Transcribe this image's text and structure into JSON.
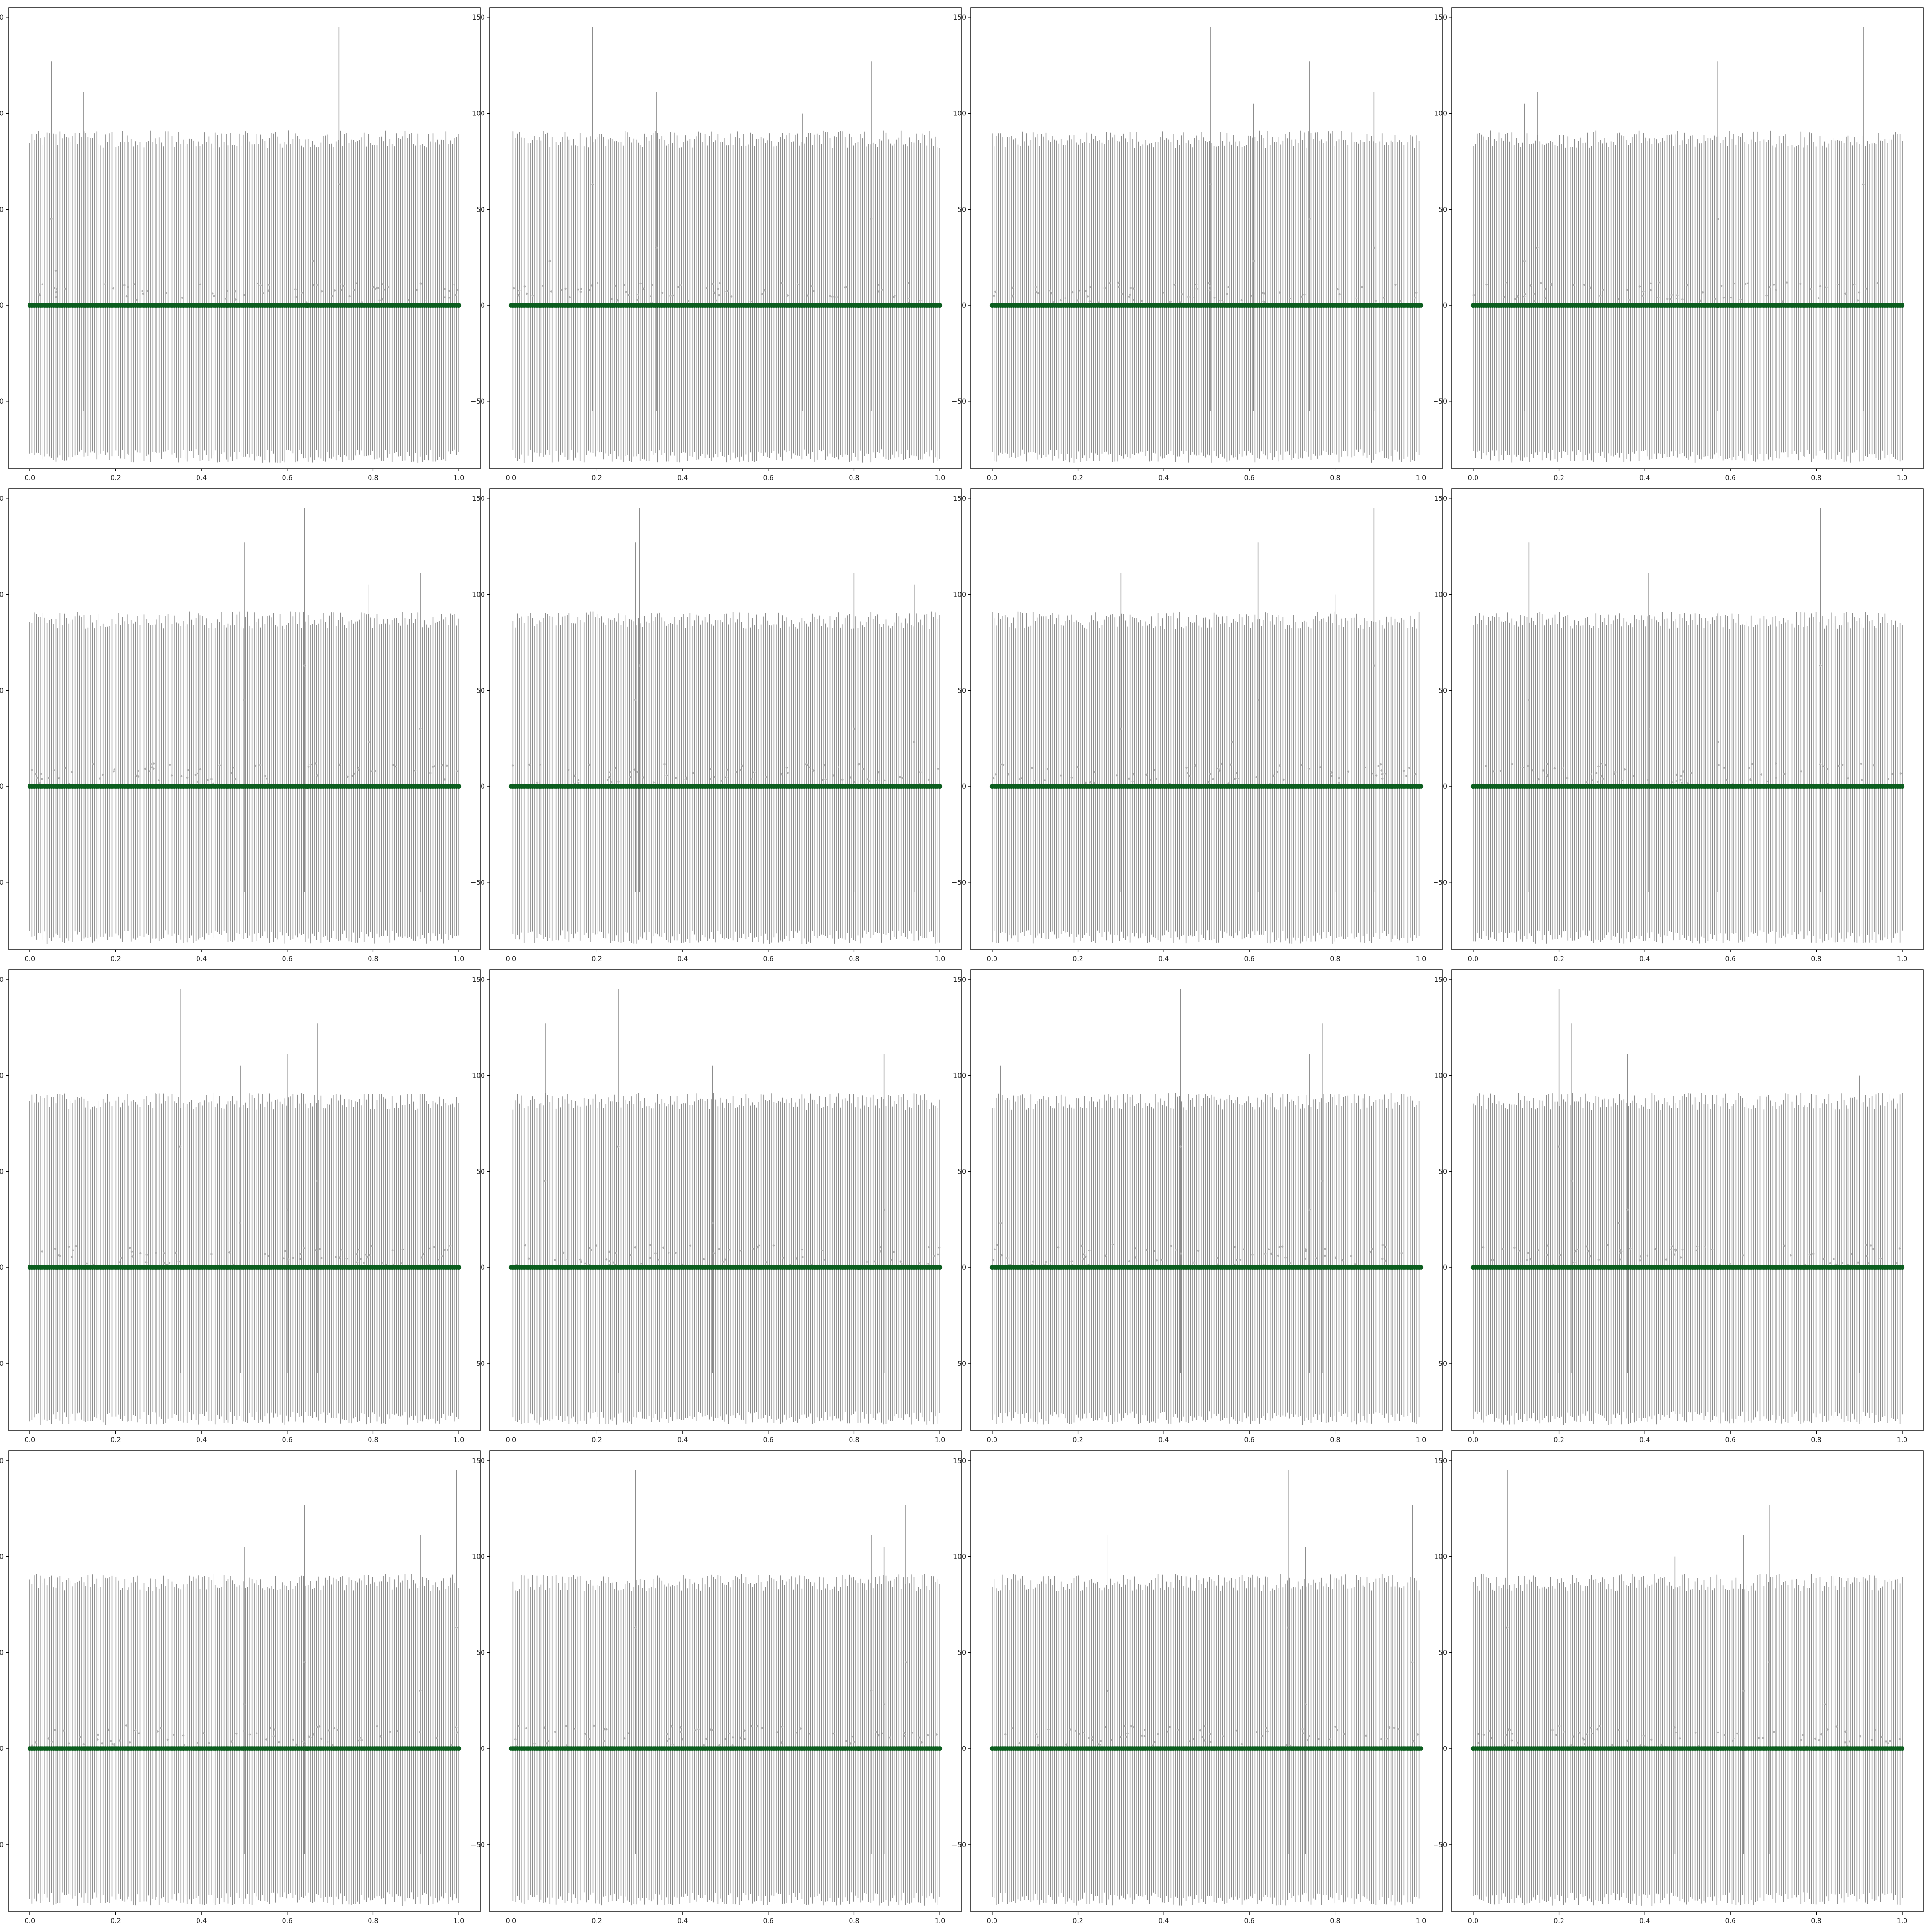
{
  "figure": {
    "layout": "4x4 grid of error-bar panels",
    "colors": {
      "points": "#0b5d1e",
      "error_bars": "#8c8c8c",
      "faint_points": "#b0b0b0",
      "axes": "#000000"
    }
  },
  "chart_data": [
    {
      "type": "scatter",
      "subtype": "errorbar",
      "panel": 1,
      "xlim": [
        0,
        1
      ],
      "ylim": [
        -85,
        155
      ],
      "x_ticks": [
        "0.0",
        "0.2",
        "0.4",
        "0.6",
        "0.8",
        "1.0"
      ],
      "y_ticks": [
        "−50",
        "0",
        "50",
        "100",
        "150"
      ],
      "n_points": 200,
      "y_value": 0,
      "typical_error": [
        -80,
        85
      ],
      "spikes": [
        {
          "x": 0.05,
          "y": 127
        },
        {
          "x": 0.125,
          "y": 111
        },
        {
          "x": 0.66,
          "y": 105
        },
        {
          "x": 0.72,
          "y": 145
        }
      ],
      "scatter_examples": [
        {
          "x": 0.05,
          "y": 45
        },
        {
          "x": 0.06,
          "y": 18
        },
        {
          "x": 0.72,
          "y": 63
        },
        {
          "x": 0.66,
          "y": 23
        }
      ],
      "grid": false,
      "legend": "none"
    },
    {
      "type": "scatter",
      "subtype": "errorbar",
      "panel": 2,
      "xlim": [
        0,
        1
      ],
      "ylim": [
        -85,
        155
      ],
      "x_ticks": [
        "0.0",
        "0.2",
        "0.4",
        "0.6",
        "0.8",
        "1.0"
      ],
      "y_ticks": [
        "−50",
        "0",
        "50",
        "100",
        "150"
      ],
      "n_points": 200,
      "y_value": 0,
      "typical_error": [
        -80,
        85
      ],
      "spikes": [
        {
          "x": 0.19,
          "y": 145
        },
        {
          "x": 0.34,
          "y": 111
        },
        {
          "x": 0.84,
          "y": 127
        },
        {
          "x": 0.68,
          "y": 100
        }
      ],
      "scatter_examples": [
        {
          "x": 0.19,
          "y": 63
        },
        {
          "x": 0.34,
          "y": 30
        },
        {
          "x": 0.84,
          "y": 45
        },
        {
          "x": 0.09,
          "y": 23
        }
      ],
      "grid": false,
      "legend": "none"
    },
    {
      "type": "scatter",
      "subtype": "errorbar",
      "panel": 3,
      "xlim": [
        0,
        1
      ],
      "ylim": [
        -85,
        155
      ],
      "x_ticks": [
        "0.0",
        "0.2",
        "0.4",
        "0.6",
        "0.8",
        "1.0"
      ],
      "y_ticks": [
        "−50",
        "0",
        "50",
        "100",
        "150"
      ],
      "n_points": 200,
      "y_value": 0,
      "typical_error": [
        -80,
        85
      ],
      "spikes": [
        {
          "x": 0.51,
          "y": 145
        },
        {
          "x": 0.74,
          "y": 127
        },
        {
          "x": 0.89,
          "y": 111
        },
        {
          "x": 0.61,
          "y": 105
        }
      ],
      "scatter_examples": [
        {
          "x": 0.51,
          "y": 63
        },
        {
          "x": 0.74,
          "y": 45
        },
        {
          "x": 0.89,
          "y": 30
        },
        {
          "x": 0.61,
          "y": 23
        }
      ],
      "grid": false,
      "legend": "none"
    },
    {
      "type": "scatter",
      "subtype": "errorbar",
      "panel": 4,
      "xlim": [
        0,
        1
      ],
      "ylim": [
        -85,
        155
      ],
      "x_ticks": [
        "0.0",
        "0.2",
        "0.4",
        "0.6",
        "0.8",
        "1.0"
      ],
      "y_ticks": [
        "−50",
        "0",
        "50",
        "100",
        "150"
      ],
      "n_points": 200,
      "y_value": 0,
      "typical_error": [
        -80,
        85
      ],
      "spikes": [
        {
          "x": 0.91,
          "y": 145
        },
        {
          "x": 0.57,
          "y": 127
        },
        {
          "x": 0.15,
          "y": 111
        },
        {
          "x": 0.12,
          "y": 105
        }
      ],
      "scatter_examples": [
        {
          "x": 0.91,
          "y": 63
        },
        {
          "x": 0.57,
          "y": 45
        },
        {
          "x": 0.15,
          "y": 30
        },
        {
          "x": 0.12,
          "y": 23
        }
      ],
      "grid": false,
      "legend": "none"
    },
    {
      "type": "scatter",
      "subtype": "errorbar",
      "panel": 5,
      "xlim": [
        0,
        1
      ],
      "ylim": [
        -85,
        155
      ],
      "x_ticks": [
        "0.0",
        "0.2",
        "0.4",
        "0.6",
        "0.8",
        "1.0"
      ],
      "y_ticks": [
        "−50",
        "0",
        "50",
        "100",
        "150"
      ],
      "n_points": 200,
      "y_value": 0,
      "typical_error": [
        -80,
        85
      ],
      "spikes": [
        {
          "x": 0.64,
          "y": 145
        },
        {
          "x": 0.5,
          "y": 127
        },
        {
          "x": 0.91,
          "y": 111
        },
        {
          "x": 0.79,
          "y": 105
        }
      ],
      "scatter_examples": [
        {
          "x": 0.64,
          "y": 63
        },
        {
          "x": 0.5,
          "y": 45
        },
        {
          "x": 0.91,
          "y": 30
        },
        {
          "x": 0.79,
          "y": 23
        }
      ],
      "grid": false,
      "legend": "none"
    },
    {
      "type": "scatter",
      "subtype": "errorbar",
      "panel": 6,
      "xlim": [
        0,
        1
      ],
      "ylim": [
        -85,
        155
      ],
      "x_ticks": [
        "0.0",
        "0.2",
        "0.4",
        "0.6",
        "0.8",
        "1.0"
      ],
      "y_ticks": [
        "−50",
        "0",
        "50",
        "100",
        "150"
      ],
      "n_points": 200,
      "y_value": 0,
      "typical_error": [
        -80,
        85
      ],
      "spikes": [
        {
          "x": 0.3,
          "y": 145
        },
        {
          "x": 0.29,
          "y": 127
        },
        {
          "x": 0.8,
          "y": 111
        },
        {
          "x": 0.94,
          "y": 105
        }
      ],
      "scatter_examples": [
        {
          "x": 0.3,
          "y": 63
        },
        {
          "x": 0.29,
          "y": 45
        },
        {
          "x": 0.8,
          "y": 30
        },
        {
          "x": 0.94,
          "y": 23
        }
      ],
      "grid": false,
      "legend": "none"
    },
    {
      "type": "scatter",
      "subtype": "errorbar",
      "panel": 7,
      "xlim": [
        0,
        1
      ],
      "ylim": [
        -85,
        155
      ],
      "x_ticks": [
        "0.0",
        "0.2",
        "0.4",
        "0.6",
        "0.8",
        "1.0"
      ],
      "y_ticks": [
        "−50",
        "0",
        "50",
        "100",
        "150"
      ],
      "n_points": 200,
      "y_value": 0,
      "typical_error": [
        -80,
        85
      ],
      "spikes": [
        {
          "x": 0.89,
          "y": 145
        },
        {
          "x": 0.62,
          "y": 127
        },
        {
          "x": 0.3,
          "y": 111
        },
        {
          "x": 0.8,
          "y": 100
        }
      ],
      "scatter_examples": [
        {
          "x": 0.89,
          "y": 63
        },
        {
          "x": 0.62,
          "y": 45
        },
        {
          "x": 0.3,
          "y": 30
        },
        {
          "x": 0.56,
          "y": 23
        }
      ],
      "grid": false,
      "legend": "none"
    },
    {
      "type": "scatter",
      "subtype": "errorbar",
      "panel": 8,
      "xlim": [
        0,
        1
      ],
      "ylim": [
        -85,
        155
      ],
      "x_ticks": [
        "0.0",
        "0.2",
        "0.4",
        "0.6",
        "0.8",
        "1.0"
      ],
      "y_ticks": [
        "−50",
        "0",
        "50",
        "100",
        "150"
      ],
      "n_points": 200,
      "y_value": 0,
      "typical_error": [
        -80,
        85
      ],
      "spikes": [
        {
          "x": 0.81,
          "y": 145
        },
        {
          "x": 0.13,
          "y": 127
        },
        {
          "x": 0.41,
          "y": 111
        },
        {
          "x": 0.57,
          "y": 90
        }
      ],
      "scatter_examples": [
        {
          "x": 0.81,
          "y": 63
        },
        {
          "x": 0.13,
          "y": 45
        },
        {
          "x": 0.41,
          "y": 30
        },
        {
          "x": 0.57,
          "y": 23
        }
      ],
      "grid": false,
      "legend": "none"
    },
    {
      "type": "scatter",
      "subtype": "errorbar",
      "panel": 9,
      "xlim": [
        0,
        1
      ],
      "ylim": [
        -85,
        155
      ],
      "x_ticks": [
        "0.0",
        "0.2",
        "0.4",
        "0.6",
        "0.8",
        "1.0"
      ],
      "y_ticks": [
        "−50",
        "0",
        "50",
        "100",
        "150"
      ],
      "n_points": 200,
      "y_value": 0,
      "typical_error": [
        -80,
        85
      ],
      "spikes": [
        {
          "x": 0.35,
          "y": 145
        },
        {
          "x": 0.67,
          "y": 127
        },
        {
          "x": 0.6,
          "y": 111
        },
        {
          "x": 0.49,
          "y": 105
        }
      ],
      "scatter_examples": [
        {
          "x": 0.35,
          "y": 63
        },
        {
          "x": 0.67,
          "y": 45
        },
        {
          "x": 0.6,
          "y": 30
        },
        {
          "x": 0.49,
          "y": 23
        }
      ],
      "grid": false,
      "legend": "none"
    },
    {
      "type": "scatter",
      "subtype": "errorbar",
      "panel": 10,
      "xlim": [
        0,
        1
      ],
      "ylim": [
        -85,
        155
      ],
      "x_ticks": [
        "0.0",
        "0.2",
        "0.4",
        "0.6",
        "0.8",
        "1.0"
      ],
      "y_ticks": [
        "−50",
        "0",
        "50",
        "100",
        "150"
      ],
      "n_points": 200,
      "y_value": 0,
      "typical_error": [
        -80,
        85
      ],
      "spikes": [
        {
          "x": 0.25,
          "y": 145
        },
        {
          "x": 0.08,
          "y": 127
        },
        {
          "x": 0.87,
          "y": 111
        },
        {
          "x": 0.47,
          "y": 105
        }
      ],
      "scatter_examples": [
        {
          "x": 0.25,
          "y": 63
        },
        {
          "x": 0.08,
          "y": 45
        },
        {
          "x": 0.87,
          "y": 30
        },
        {
          "x": 0.47,
          "y": 23
        }
      ],
      "grid": false,
      "legend": "none"
    },
    {
      "type": "scatter",
      "subtype": "errorbar",
      "panel": 11,
      "xlim": [
        0,
        1
      ],
      "ylim": [
        -85,
        155
      ],
      "x_ticks": [
        "0.0",
        "0.2",
        "0.4",
        "0.6",
        "0.8",
        "1.0"
      ],
      "y_ticks": [
        "−50",
        "0",
        "50",
        "100",
        "150"
      ],
      "n_points": 200,
      "y_value": 0,
      "typical_error": [
        -80,
        85
      ],
      "spikes": [
        {
          "x": 0.44,
          "y": 145
        },
        {
          "x": 0.77,
          "y": 127
        },
        {
          "x": 0.74,
          "y": 111
        },
        {
          "x": 0.02,
          "y": 105
        }
      ],
      "scatter_examples": [
        {
          "x": 0.44,
          "y": 63
        },
        {
          "x": 0.77,
          "y": 45
        },
        {
          "x": 0.74,
          "y": 30
        },
        {
          "x": 0.02,
          "y": 23
        }
      ],
      "grid": false,
      "legend": "none"
    },
    {
      "type": "scatter",
      "subtype": "errorbar",
      "panel": 12,
      "xlim": [
        0,
        1
      ],
      "ylim": [
        -85,
        155
      ],
      "x_ticks": [
        "0.0",
        "0.2",
        "0.4",
        "0.6",
        "0.8",
        "1.0"
      ],
      "y_ticks": [
        "−50",
        "0",
        "50",
        "100",
        "150"
      ],
      "n_points": 200,
      "y_value": 0,
      "typical_error": [
        -80,
        85
      ],
      "spikes": [
        {
          "x": 0.2,
          "y": 145
        },
        {
          "x": 0.23,
          "y": 127
        },
        {
          "x": 0.36,
          "y": 111
        },
        {
          "x": 0.9,
          "y": 100
        }
      ],
      "scatter_examples": [
        {
          "x": 0.2,
          "y": 63
        },
        {
          "x": 0.23,
          "y": 45
        },
        {
          "x": 0.36,
          "y": 30
        },
        {
          "x": 0.34,
          "y": 23
        }
      ],
      "grid": false,
      "legend": "none"
    },
    {
      "type": "scatter",
      "subtype": "errorbar",
      "panel": 13,
      "xlim": [
        0,
        1
      ],
      "ylim": [
        -85,
        155
      ],
      "x_ticks": [
        "0.0",
        "0.2",
        "0.4",
        "0.6",
        "0.8",
        "1.0"
      ],
      "y_ticks": [
        "−50",
        "0",
        "50",
        "100",
        "150"
      ],
      "n_points": 200,
      "y_value": 0,
      "typical_error": [
        -80,
        85
      ],
      "spikes": [
        {
          "x": 0.995,
          "y": 145
        },
        {
          "x": 0.64,
          "y": 127
        },
        {
          "x": 0.91,
          "y": 111
        },
        {
          "x": 0.5,
          "y": 105
        }
      ],
      "scatter_examples": [
        {
          "x": 0.995,
          "y": 63
        },
        {
          "x": 0.64,
          "y": 45
        },
        {
          "x": 0.91,
          "y": 30
        },
        {
          "x": 0.5,
          "y": 23
        }
      ],
      "grid": false,
      "legend": "none"
    },
    {
      "type": "scatter",
      "subtype": "errorbar",
      "panel": 14,
      "xlim": [
        0,
        1
      ],
      "ylim": [
        -85,
        155
      ],
      "x_ticks": [
        "0.0",
        "0.2",
        "0.4",
        "0.6",
        "0.8",
        "1.0"
      ],
      "y_ticks": [
        "−50",
        "0",
        "50",
        "100",
        "150"
      ],
      "n_points": 200,
      "y_value": 0,
      "typical_error": [
        -80,
        85
      ],
      "spikes": [
        {
          "x": 0.29,
          "y": 145
        },
        {
          "x": 0.92,
          "y": 127
        },
        {
          "x": 0.84,
          "y": 111
        },
        {
          "x": 0.87,
          "y": 105
        }
      ],
      "scatter_examples": [
        {
          "x": 0.29,
          "y": 63
        },
        {
          "x": 0.92,
          "y": 45
        },
        {
          "x": 0.84,
          "y": 30
        },
        {
          "x": 0.87,
          "y": 23
        }
      ],
      "grid": false,
      "legend": "none"
    },
    {
      "type": "scatter",
      "subtype": "errorbar",
      "panel": 15,
      "xlim": [
        0,
        1
      ],
      "ylim": [
        -85,
        155
      ],
      "x_ticks": [
        "0.0",
        "0.2",
        "0.4",
        "0.6",
        "0.8",
        "1.0"
      ],
      "y_ticks": [
        "−50",
        "0",
        "50",
        "100",
        "150"
      ],
      "n_points": 200,
      "y_value": 0,
      "typical_error": [
        -80,
        85
      ],
      "spikes": [
        {
          "x": 0.69,
          "y": 145
        },
        {
          "x": 0.98,
          "y": 127
        },
        {
          "x": 0.27,
          "y": 111
        },
        {
          "x": 0.73,
          "y": 105
        }
      ],
      "scatter_examples": [
        {
          "x": 0.69,
          "y": 63
        },
        {
          "x": 0.98,
          "y": 45
        },
        {
          "x": 0.27,
          "y": 30
        },
        {
          "x": 0.73,
          "y": 23
        }
      ],
      "grid": false,
      "legend": "none"
    },
    {
      "type": "scatter",
      "subtype": "errorbar",
      "panel": 16,
      "xlim": [
        0,
        1
      ],
      "ylim": [
        -85,
        155
      ],
      "x_ticks": [
        "0.0",
        "0.2",
        "0.4",
        "0.6",
        "0.8",
        "1.0"
      ],
      "y_ticks": [
        "−50",
        "0",
        "50",
        "100",
        "150"
      ],
      "n_points": 200,
      "y_value": 0,
      "typical_error": [
        -80,
        85
      ],
      "spikes": [
        {
          "x": 0.08,
          "y": 145
        },
        {
          "x": 0.69,
          "y": 127
        },
        {
          "x": 0.63,
          "y": 111
        },
        {
          "x": 0.47,
          "y": 100
        }
      ],
      "scatter_examples": [
        {
          "x": 0.08,
          "y": 63
        },
        {
          "x": 0.69,
          "y": 45
        },
        {
          "x": 0.63,
          "y": 30
        },
        {
          "x": 0.82,
          "y": 23
        }
      ],
      "grid": false,
      "legend": "none"
    }
  ]
}
